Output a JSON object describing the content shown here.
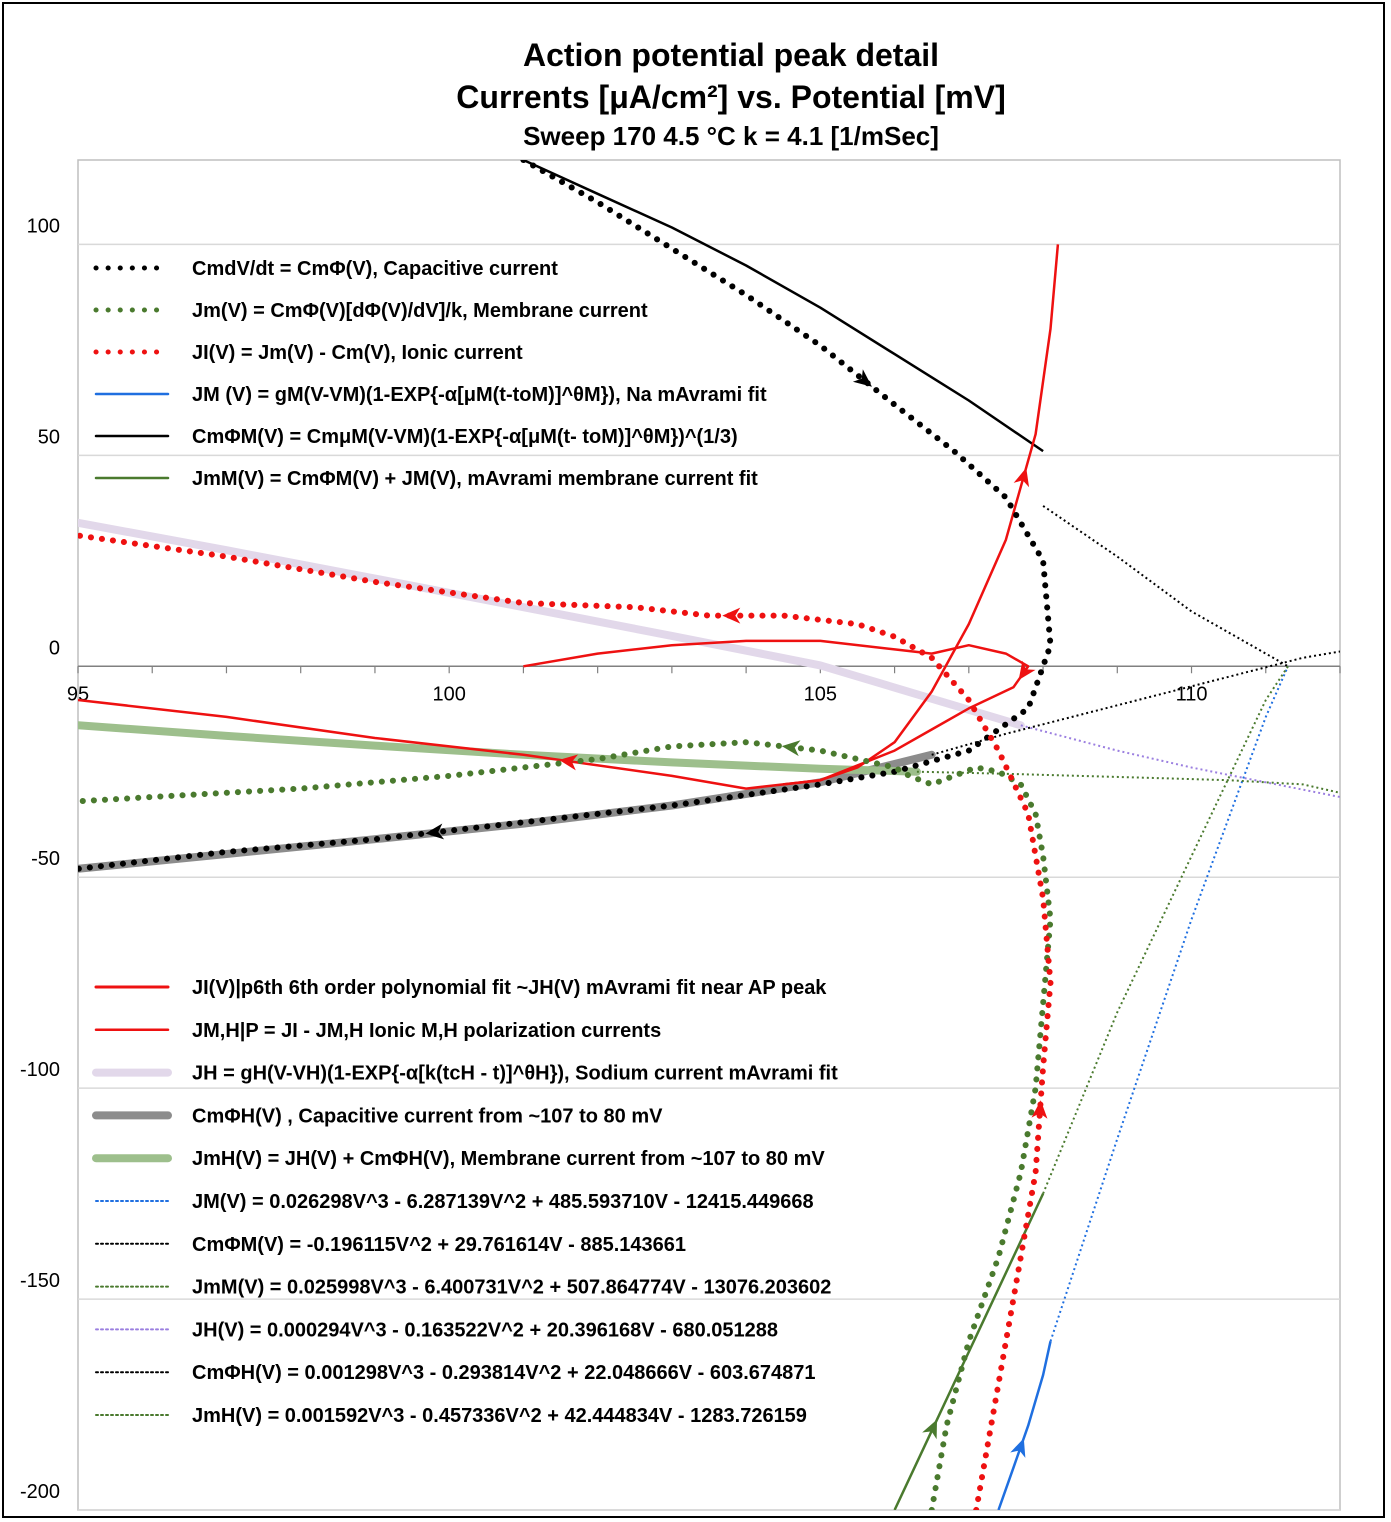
{
  "chart_data": {
    "type": "line",
    "title": "Action potential peak detail",
    "subtitle": "Currents [μA/cm²] vs. Potential [mV]",
    "subtitle2": "Sweep 170    4.5 °C    k = 4.1 [1/mSec]",
    "xlabel": "",
    "ylabel": "",
    "xlim": [
      95,
      112
    ],
    "ylim": [
      -200,
      120
    ],
    "x_ticks": [
      "95",
      "100",
      "105",
      "110"
    ],
    "y_ticks": [
      "100",
      "50",
      "0",
      "-50",
      "-100",
      "-150",
      "-200"
    ],
    "grid": "horizontal",
    "legend_top": [
      {
        "label": "CmdV/dt = CmΦ(V),  Capacitive current",
        "color": "#000000",
        "style": "dotted-thick"
      },
      {
        "label": "Jm(V) = CmΦ(V)[dΦ(V)/dV]/k, Membrane current",
        "color": "#4a7a2e",
        "style": "dotted-thick"
      },
      {
        "label": "JI(V) = Jm(V) - Cm(V), Ionic current",
        "color": "#ee1111",
        "style": "dotted-thick"
      },
      {
        "label": "JM (V) = gM(V-VM)(1-EXP{-α[μM(t-toM)]^θM}), Na mAvrami fit",
        "color": "#1f6fe0",
        "style": "solid"
      },
      {
        "label": "CmΦM(V) = CmμM(V-VM)(1-EXP{-α[μM(t- toM)]^θM})^(1/3)",
        "color": "#000000",
        "style": "solid"
      },
      {
        "label": "JmM(V) = CmΦM(V) + JM(V),  mAvrami membrane current fit",
        "color": "#4a7a2e",
        "style": "solid"
      }
    ],
    "legend_bottom": [
      {
        "label": "JI(V)|p6th 6th order polynomial fit  ~JH(V) mAvrami fit near AP peak",
        "color": "#ee1111",
        "style": "solid-thick"
      },
      {
        "label": "JM,H|P = JI - JM,H    Ionic M,H polarization currents",
        "color": "#ee1111",
        "style": "solid"
      },
      {
        "label": "JH = gH(V-VH)(1-EXP{-α[k(tcH - t)]^θH}), Sodium current mAvrami fit",
        "color": "#e2d8ea",
        "style": "band"
      },
      {
        "label": "CmΦH(V) ,  Capacitive current from ~107 to 80 mV",
        "color": "#8c8c8c",
        "style": "band"
      },
      {
        "label": "JmH(V) = JH(V) + CmΦH(V),  Membrane current from ~107 to 80 mV",
        "color": "#9dbf8c",
        "style": "band"
      },
      {
        "label": "JM(V)  = 0.026298V^3 - 6.287139V^2 + 485.593710V - 12415.449668",
        "color": "#1f6fe0",
        "style": "dotted-thin"
      },
      {
        "label": "CmΦM(V) = -0.196115V^2 + 29.761614V - 885.143661",
        "color": "#000000",
        "style": "dotted-thin"
      },
      {
        "label": "JmM(V) = 0.025998V^3 -  6.400731V^2 + 507.864774V - 13076.203602",
        "color": "#4a7a2e",
        "style": "dotted-thin"
      },
      {
        "label": "JH(V) =  0.000294V^3 -  0.163522V^2  + 20.396168V -  680.051288",
        "color": "#9b7fe0",
        "style": "dotted-thin"
      },
      {
        "label": "CmΦH(V) = 0.001298V^3 - 0.293814V^2 + 22.048666V - 603.674871",
        "color": "#000000",
        "style": "dotted-thin"
      },
      {
        "label": "JmH(V) = 0.001592V^3 - 0.457336V^2 + 42.444834V - 1283.726159",
        "color": "#4a7a2e",
        "style": "dotted-thin"
      }
    ],
    "series": [
      {
        "name": "CmdV/dt = CmΦ(V),  Capacitive current",
        "color": "#000000",
        "style": "dotted-thick",
        "x": [
          101.0,
          102.0,
          103.0,
          104.0,
          105.0,
          106.0,
          106.8,
          107.5,
          108.0,
          108.1,
          107.8,
          107.0,
          106.0,
          105.0,
          103.0,
          101.0,
          99.0,
          97.0,
          95.0
        ],
        "y": [
          120,
          110,
          99,
          88,
          76,
          62,
          51,
          40,
          25,
          5,
          -10,
          -20,
          -25,
          -28,
          -33,
          -37,
          -41,
          -44,
          -48
        ]
      },
      {
        "name": "Jm(V) = CmΦ(V)[dΦ(V)/dV]/k, Membrane current",
        "color": "#4a7a2e",
        "style": "dotted-thick",
        "x": [
          106.5,
          106.7,
          107.0,
          107.4,
          107.7,
          107.9,
          108.0,
          108.1,
          108.0,
          107.9,
          107.7,
          107.4,
          107.1,
          106.8,
          106.5,
          106.2,
          106.0,
          105.0,
          104.0,
          103.0,
          102.0,
          101.0,
          100.0,
          98.0,
          96.0,
          95.0
        ],
        "y": [
          -200,
          -180,
          -160,
          -140,
          -120,
          -100,
          -80,
          -60,
          -45,
          -35,
          -28,
          -25,
          -24,
          -26,
          -28,
          -26,
          -24,
          -20,
          -18,
          -19,
          -22,
          -24,
          -26,
          -29,
          -31,
          -32
        ]
      },
      {
        "name": "JI(V) = Jm(V) - Cm(V), Ionic current",
        "color": "#ee1111",
        "style": "dotted-thick",
        "x": [
          107.1,
          107.3,
          107.6,
          107.9,
          108.0,
          108.1,
          108.0,
          107.8,
          107.4,
          107.0,
          106.5,
          106.0,
          105.5,
          104.5,
          103.5,
          102.5,
          101.0,
          99.0,
          97.0,
          95.0
        ],
        "y": [
          -200,
          -180,
          -150,
          -120,
          -95,
          -75,
          -55,
          -35,
          -20,
          -8,
          2,
          7,
          10,
          12,
          12,
          14,
          15,
          20,
          26,
          31
        ]
      },
      {
        "name": "JM (V) = gM(V-VM)(1-EXP{-α[μM(t-toM)]^θM}), Na mAvrami fit",
        "color": "#1f6fe0",
        "style": "solid",
        "x": [
          107.4,
          107.6,
          107.8,
          108.0,
          108.1
        ],
        "y": [
          -200,
          -190,
          -180,
          -168,
          -160
        ]
      },
      {
        "name": "CmΦM(V) = CmμM(V-VM)(1-EXP{-α[μM(t- toM)]^θM})^(1/3)",
        "color": "#000000",
        "style": "solid",
        "x": [
          101.0,
          102.0,
          103.0,
          104.0,
          105.0,
          106.0,
          107.0,
          108.0
        ],
        "y": [
          120,
          112,
          104,
          95,
          85,
          74,
          63,
          51
        ]
      },
      {
        "name": "JmM(V) = CmΦM(V) + JM(V),  mAvrami membrane current fit",
        "color": "#4a7a2e",
        "style": "solid",
        "x": [
          106.0,
          106.4,
          106.8,
          107.2,
          107.6,
          108.0
        ],
        "y": [
          -200,
          -185,
          -170,
          -155,
          -140,
          -125
        ]
      },
      {
        "name": "JI(V)|p6th 6th order polynomial fit  ~JH(V) mAvrami fit near AP peak",
        "color": "#ee1111",
        "style": "solid",
        "x": [
          101.0,
          102.0,
          103.0,
          104.0,
          105.0,
          106.0,
          106.5,
          107.0,
          107.5,
          107.8,
          107.6,
          107.0,
          106.5,
          106.0,
          105.0,
          104.0,
          103.0,
          101.0,
          99.0,
          97.0,
          95.0
        ],
        "y": [
          0,
          3,
          5,
          6,
          6,
          4,
          3,
          5,
          3,
          0,
          -5,
          -10,
          -15,
          -20,
          -27,
          -29,
          -26,
          -21,
          -17,
          -12,
          -8
        ]
      },
      {
        "name": "JM,H|P = JI - JM,H    Ionic M,H polarization currents",
        "color": "#ee1111",
        "style": "solid",
        "x": [
          104.5,
          105.0,
          105.5,
          106.0,
          106.5,
          107.0,
          107.5,
          107.9,
          108.1,
          108.2
        ],
        "y": [
          -28,
          -27,
          -24,
          -18,
          -6,
          10,
          30,
          55,
          80,
          100
        ]
      },
      {
        "name": "JH = gH(V-VH)(1-EXP{-α[k(tcH - t)]^θH}), Sodium current mAvrami fit",
        "color": "#e2d8ea",
        "style": "band",
        "x": [
          95,
          97,
          99,
          101,
          103,
          105,
          107.7
        ],
        "y": [
          34,
          27.5,
          20.8,
          14,
          7.2,
          0.2,
          -14
        ]
      },
      {
        "name": "CmΦH(V) ,  Capacitive current from ~107 to 80 mV",
        "color": "#8c8c8c",
        "style": "band",
        "x": [
          95,
          97,
          99,
          101,
          103,
          105,
          106.5
        ],
        "y": [
          -48,
          -44.5,
          -41,
          -37.3,
          -33,
          -27.5,
          -21
        ]
      },
      {
        "name": "JmH(V) = JH(V) + CmΦH(V),  Membrane current from ~107 to 80 mV",
        "color": "#9dbf8c",
        "style": "band",
        "x": [
          95,
          97,
          99,
          101,
          103,
          105,
          106.3
        ],
        "y": [
          -14,
          -16.5,
          -18.8,
          -21,
          -22.8,
          -24.3,
          -25
        ]
      },
      {
        "name": "JM(V)  = 0.026298V^3 - 6.287139V^2 + 485.593710V - 12415.449668",
        "color": "#1f6fe0",
        "style": "dotted-thin",
        "x": [
          108.1,
          109.0,
          110.0,
          111.0,
          111.3
        ],
        "y": [
          -160,
          -112,
          -60,
          -12,
          0
        ]
      },
      {
        "name": "CmΦM(V) = -0.196115V^2 + 29.761614V - 885.143661",
        "color": "#000000",
        "style": "dotted-thin",
        "x": [
          108.0,
          109.0,
          110.0,
          111.0,
          111.3
        ],
        "y": [
          38,
          26,
          13,
          3,
          0
        ]
      },
      {
        "name": "JmM(V) = 0.025998V^3 -  6.400731V^2 + 507.864774V - 13076.203602",
        "color": "#4a7a2e",
        "style": "dotted-thin",
        "x": [
          108.0,
          109.0,
          110.0,
          111.0,
          111.3
        ],
        "y": [
          -125,
          -82,
          -45,
          -8,
          0
        ]
      },
      {
        "name": "JH(V) =  0.000294V^3 -  0.163522V^2  + 20.396168V -  680.051288",
        "color": "#9b7fe0",
        "style": "dotted-thin",
        "x": [
          107.7,
          109.0,
          110.0,
          111.0,
          112.0
        ],
        "y": [
          -14,
          -20,
          -24,
          -27.5,
          -31
        ]
      },
      {
        "name": "CmΦH(V) = 0.001298V^3 - 0.293814V^2 + 22.048666V - 603.674871",
        "color": "#000000",
        "style": "dotted-thin",
        "x": [
          106.5,
          107.5,
          108.5,
          109.5,
          110.5,
          111.5,
          112.0
        ],
        "y": [
          -21,
          -16,
          -11.5,
          -7,
          -2.5,
          2,
          3.5
        ]
      },
      {
        "name": "JmH(V) = 0.001592V^3 - 0.457336V^2 + 42.444834V - 1283.726159",
        "color": "#4a7a2e",
        "style": "dotted-thin",
        "x": [
          106.3,
          107.5,
          108.5,
          109.5,
          110.5,
          111.5,
          112.0
        ],
        "y": [
          -25,
          -25.5,
          -26,
          -26.5,
          -27,
          -28,
          -30
        ]
      }
    ]
  }
}
